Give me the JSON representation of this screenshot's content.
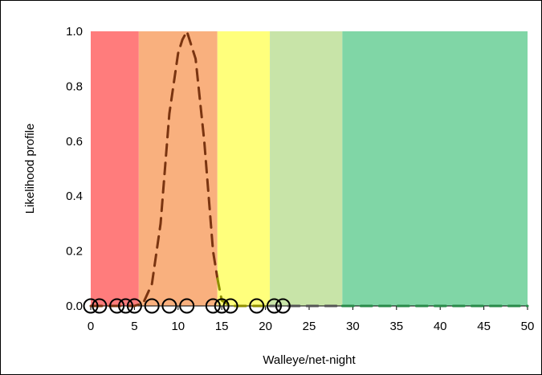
{
  "chart_data": {
    "type": "line",
    "title": "",
    "xlabel": "Walleye/net-night",
    "ylabel": "Likelihood profile",
    "xlim": [
      0,
      50
    ],
    "ylim": [
      0,
      1.0
    ],
    "x_ticks": [
      0,
      5,
      10,
      15,
      20,
      25,
      30,
      35,
      40,
      45,
      50
    ],
    "x_tick_labels": [
      "0",
      "5",
      "10",
      "15",
      "20",
      "25",
      "30",
      "35",
      "40",
      "45",
      "50"
    ],
    "y_ticks": [
      0,
      0.2,
      0.4,
      0.6,
      0.8,
      1.0
    ],
    "y_tick_labels": [
      "0.0",
      "0.2",
      "0.4",
      "0.6",
      "0.8",
      "1.0"
    ],
    "grid": false,
    "bands": [
      {
        "x0": 0,
        "x1": 5.5,
        "color": "#ff7c7c"
      },
      {
        "x0": 5.5,
        "x1": 14.5,
        "color": "#f9b07e"
      },
      {
        "x0": 14.5,
        "x1": 20.5,
        "color": "#ffff7c"
      },
      {
        "x0": 20.5,
        "x1": 28.8,
        "color": "#c8e4a8"
      },
      {
        "x0": 28.8,
        "x1": 50,
        "color": "#80d6a6"
      }
    ],
    "series": [
      {
        "style": "dashed",
        "segments": [
          {
            "color": "#7a3410",
            "x": [
              0,
              5,
              6,
              7,
              8,
              9,
              10,
              10.5,
              11,
              12,
              13,
              14,
              14.5
            ],
            "y": [
              0,
              0,
              0.01,
              0.08,
              0.3,
              0.7,
              0.92,
              0.97,
              1.0,
              0.9,
              0.6,
              0.2,
              0.1
            ]
          },
          {
            "color": "#8f8f00",
            "x": [
              14.5,
              15,
              16,
              18,
              20.5
            ],
            "y": [
              0.1,
              0.02,
              0,
              0,
              0
            ]
          },
          {
            "color": "#555555",
            "x": [
              20.5,
              28.8
            ],
            "y": [
              0,
              0
            ]
          },
          {
            "color": "#2a8a4a",
            "x": [
              28.8,
              50
            ],
            "y": [
              0,
              0
            ]
          }
        ]
      }
    ],
    "observations": [
      0,
      1,
      3,
      4,
      5,
      7,
      9,
      11,
      14,
      15,
      16,
      19,
      21,
      22
    ]
  }
}
